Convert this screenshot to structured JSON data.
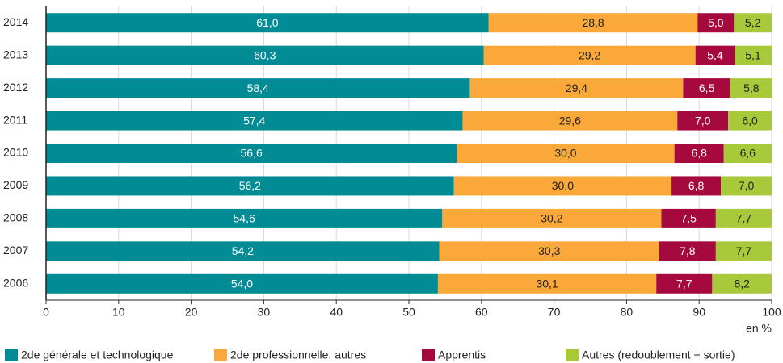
{
  "chart_data": {
    "type": "bar",
    "orientation": "horizontal",
    "stacked": true,
    "categories": [
      "2014",
      "2013",
      "2012",
      "2011",
      "2010",
      "2009",
      "2008",
      "2007",
      "2006"
    ],
    "series": [
      {
        "name": "2de générale et technologique",
        "color": "#008b95",
        "values": [
          61.0,
          60.3,
          58.4,
          57.4,
          56.6,
          56.2,
          54.6,
          54.2,
          54.0
        ],
        "value_labels": [
          "61,0",
          "60,3",
          "58,4",
          "57,4",
          "56,6",
          "56,2",
          "54,6",
          "54,2",
          "54,0"
        ]
      },
      {
        "name": "2de professionnelle, autres",
        "color": "#f9a839",
        "values": [
          28.8,
          29.2,
          29.4,
          29.6,
          30.0,
          30.0,
          30.2,
          30.3,
          30.1
        ],
        "value_labels": [
          "28,8",
          "29,2",
          "29,4",
          "29,6",
          "30,0",
          "30,0",
          "30,2",
          "30,3",
          "30,1"
        ]
      },
      {
        "name": "Apprentis",
        "color": "#a6093d",
        "values": [
          5.0,
          5.4,
          6.5,
          7.0,
          6.8,
          6.8,
          7.5,
          7.8,
          7.7
        ],
        "value_labels": [
          "5,0",
          "5,4",
          "6,5",
          "7,0",
          "6,8",
          "6,8",
          "7,5",
          "7,8",
          "7,7"
        ]
      },
      {
        "name": "Autres (redoublement + sortie)",
        "color": "#a8c93a",
        "values": [
          5.2,
          5.1,
          5.8,
          6.0,
          6.6,
          7.0,
          7.7,
          7.7,
          8.2
        ],
        "value_labels": [
          "5,2",
          "5,1",
          "5,8",
          "6,0",
          "6,6",
          "7,0",
          "7,7",
          "7,7",
          "8,2"
        ]
      }
    ],
    "xlabel": "en %",
    "xlim": [
      0,
      100
    ],
    "xticks": [
      0,
      10,
      20,
      30,
      40,
      50,
      60,
      70,
      80,
      90,
      100
    ],
    "grid": true,
    "legend": "bottom"
  }
}
